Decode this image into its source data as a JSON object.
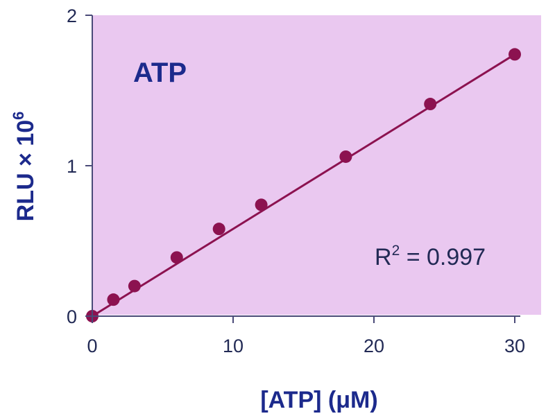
{
  "chart_data": {
    "type": "scatter",
    "title": "",
    "xlabel": "[ATP] (μM)",
    "ylabel_main": "RLU × 10",
    "ylabel_exp": "6",
    "annotation": "ATP",
    "r2_label": "R",
    "r2_exp": "2",
    "r2_value": " = 0.997",
    "xlim": [
      0,
      32
    ],
    "ylim": [
      0,
      2
    ],
    "x_ticks": [
      0,
      10,
      20,
      30
    ],
    "y_ticks": [
      0,
      1,
      2
    ],
    "x_tick_labels": [
      "0",
      "10",
      "20",
      "30"
    ],
    "y_tick_labels": [
      "0",
      "1",
      "2"
    ],
    "grid": false,
    "legend": "none",
    "series": [
      {
        "x": [
          0,
          1.5,
          3,
          6,
          9,
          12,
          18,
          24,
          30
        ],
        "y": [
          0.0,
          0.11,
          0.2,
          0.39,
          0.58,
          0.74,
          1.06,
          1.41,
          1.74
        ]
      }
    ],
    "fit_line": {
      "x": [
        0,
        30
      ],
      "y": [
        0.0,
        1.74
      ]
    }
  },
  "colors": {
    "plot_bg": "#eac8f0",
    "marker": "#8c1250",
    "line": "#8c1250",
    "axis": "#4a4a78",
    "text_blue": "#1c2a8c",
    "text_dark": "#222a55"
  }
}
